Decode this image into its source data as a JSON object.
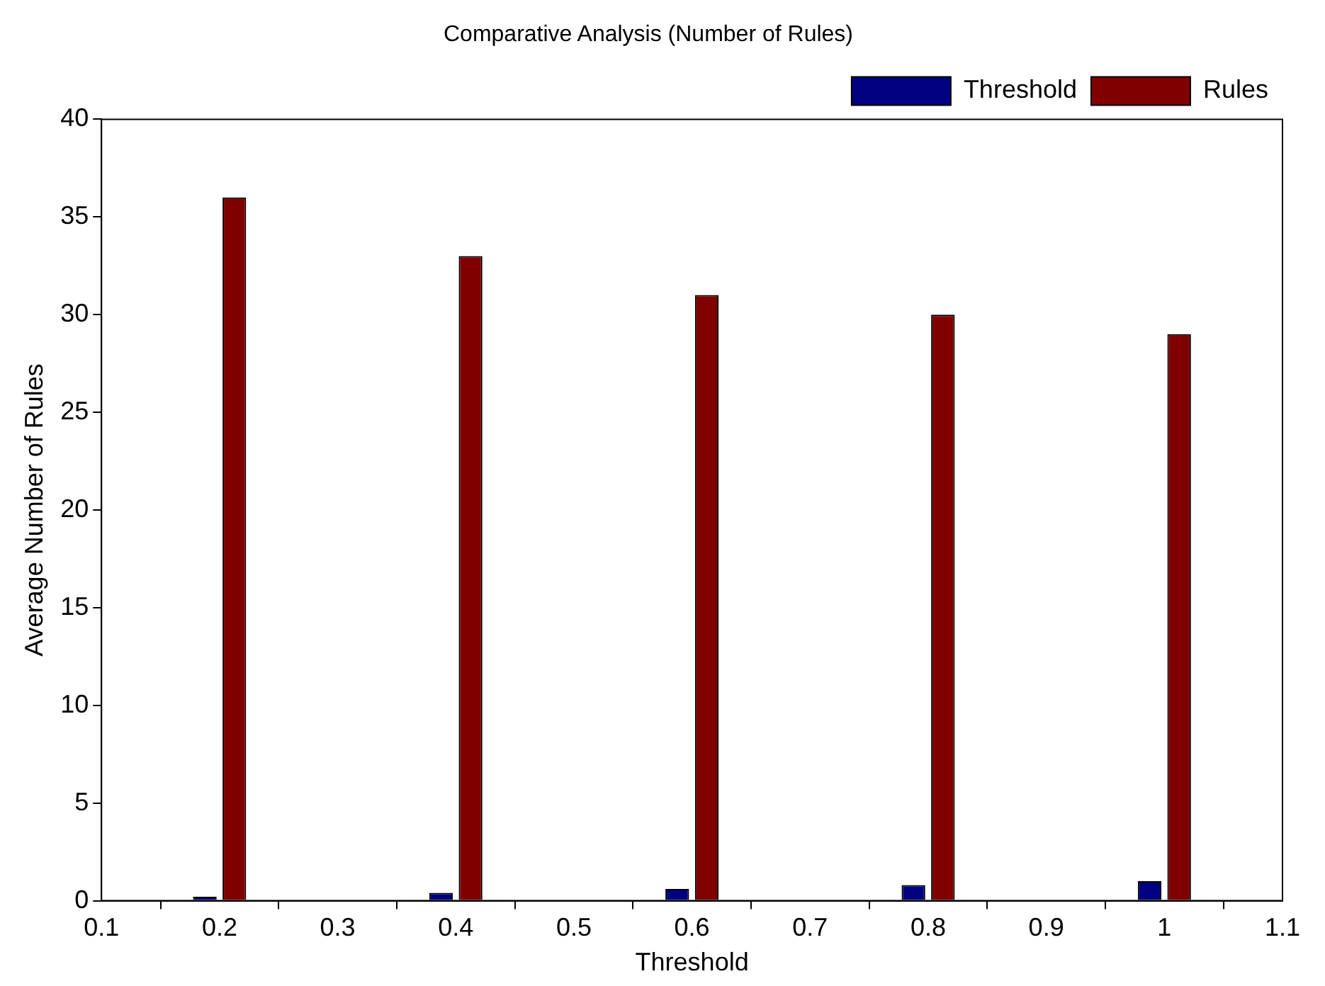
{
  "chart_data": {
    "type": "bar",
    "title": "Comparative Analysis (Number of Rules)",
    "xlabel": "Threshold",
    "ylabel": "Average Number of Rules",
    "x": [
      0.2,
      0.4,
      0.6,
      0.8,
      1.0
    ],
    "series": [
      {
        "name": "Threshold",
        "color": "#000080",
        "values": [
          0.2,
          0.4,
          0.6,
          0.8,
          1.0
        ]
      },
      {
        "name": "Rules",
        "color": "#800000",
        "values": [
          36,
          33,
          31,
          30,
          29
        ]
      }
    ],
    "xlim": [
      0.1,
      1.1
    ],
    "xticks": [
      0.1,
      0.2,
      0.3,
      0.4,
      0.5,
      0.6,
      0.7,
      0.8,
      0.9,
      1,
      1.1
    ],
    "ylim": [
      0,
      40
    ],
    "yticks": [
      0,
      5,
      10,
      15,
      20,
      25,
      30,
      35,
      40
    ],
    "grid": false,
    "legend": "top right"
  }
}
